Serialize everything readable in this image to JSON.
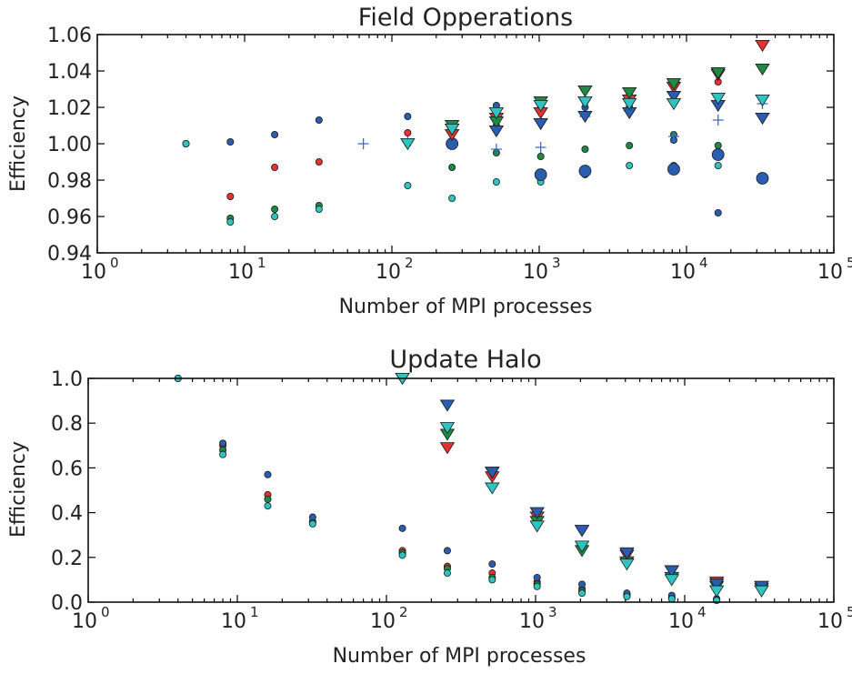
{
  "colors": {
    "red": "#e8312e",
    "green": "#1e8a44",
    "blue": "#2a5db0",
    "cyan": "#2ec4c0",
    "plus": "#3a6cc8"
  },
  "chart_data": [
    {
      "type": "scatter",
      "title": "Field Opperations",
      "xlabel": "Number of MPI processes",
      "ylabel": "Efficiency",
      "xscale": "log",
      "xlim": [
        1,
        100000
      ],
      "ylim": [
        0.94,
        1.06
      ],
      "xticks": [
        {
          "base": "10",
          "exp": "0",
          "value": 1
        },
        {
          "base": "10",
          "exp": "1",
          "value": 10
        },
        {
          "base": "10",
          "exp": "2",
          "value": 100
        },
        {
          "base": "10",
          "exp": "3",
          "value": 1000
        },
        {
          "base": "10",
          "exp": "4",
          "value": 10000
        },
        {
          "base": "10",
          "exp": "5",
          "value": 100000
        }
      ],
      "yticks": [
        {
          "label": "0.94",
          "value": 0.94
        },
        {
          "label": "0.96",
          "value": 0.96
        },
        {
          "label": "0.98",
          "value": 0.98
        },
        {
          "label": "1.00",
          "value": 1.0
        },
        {
          "label": "1.02",
          "value": 1.02
        },
        {
          "label": "1.04",
          "value": 1.04
        },
        {
          "label": "1.06",
          "value": 1.06
        }
      ],
      "grid": false,
      "series": [
        {
          "marker": "circle-small",
          "color": "red",
          "x": [
            8,
            16,
            32,
            128,
            256,
            512,
            1024,
            2048,
            4096,
            8192,
            16384
          ],
          "y": [
            0.971,
            0.987,
            0.99,
            1.006,
            1.0,
            1.01,
            1.018,
            1.024,
            1.028,
            1.032,
            1.034
          ]
        },
        {
          "marker": "circle-small",
          "color": "green",
          "x": [
            8,
            16,
            32,
            128,
            256,
            512,
            1024,
            2048,
            4096,
            8192,
            16384
          ],
          "y": [
            0.959,
            0.964,
            0.966,
            1.0,
            0.987,
            0.995,
            0.993,
            0.997,
            0.999,
            1.005,
            0.999
          ]
        },
        {
          "marker": "circle-small",
          "color": "blue",
          "x": [
            4,
            8,
            16,
            32,
            128,
            256,
            512,
            1024,
            2048,
            4096,
            8192,
            16384
          ],
          "y": [
            1.0,
            1.001,
            1.005,
            1.013,
            1.015,
            1.01,
            1.021,
            1.02,
            1.02,
            1.02,
            1.002,
            0.962
          ]
        },
        {
          "marker": "circle-small",
          "color": "cyan",
          "x": [
            4,
            8,
            16,
            32,
            128,
            256,
            512,
            1024,
            2048,
            4096,
            8192,
            16384
          ],
          "y": [
            1.0,
            0.957,
            0.96,
            0.964,
            0.977,
            0.97,
            0.979,
            0.979,
            0.983,
            0.988,
            0.988,
            0.988
          ]
        },
        {
          "marker": "circle-large",
          "color": "blue",
          "x": [
            256,
            1024,
            2048,
            8192,
            16384,
            32768
          ],
          "y": [
            1.0,
            0.983,
            0.985,
            0.986,
            0.994,
            0.981
          ]
        },
        {
          "marker": "plus",
          "color": "plus",
          "x": [
            64,
            128,
            512,
            1024,
            2048,
            4096,
            8192,
            16384,
            32768
          ],
          "y": [
            1.0,
            1.001,
            0.997,
            0.998,
            1.015,
            1.018,
            1.004,
            1.013,
            1.022
          ]
        },
        {
          "marker": "triangle-down",
          "color": "red",
          "x": [
            256,
            512,
            1024,
            2048,
            4096,
            8192,
            16384,
            32768
          ],
          "y": [
            1.005,
            1.014,
            1.017,
            1.023,
            1.024,
            1.031,
            1.038,
            1.054
          ]
        },
        {
          "marker": "triangle-down",
          "color": "green",
          "x": [
            256,
            512,
            1024,
            2048,
            4096,
            8192,
            16384,
            32768
          ],
          "y": [
            1.01,
            1.012,
            1.023,
            1.029,
            1.028,
            1.033,
            1.039,
            1.041
          ]
        },
        {
          "marker": "triangle-down",
          "color": "blue",
          "x": [
            256,
            512,
            1024,
            2048,
            4096,
            8192,
            16384,
            32768
          ],
          "y": [
            1.008,
            1.007,
            1.011,
            1.015,
            1.017,
            1.026,
            1.021,
            1.014
          ]
        },
        {
          "marker": "triangle-down",
          "color": "cyan",
          "x": [
            128,
            256,
            512,
            1024,
            2048,
            4096,
            8192,
            16384,
            32768
          ],
          "y": [
            1.0,
            1.008,
            1.017,
            1.021,
            1.023,
            1.022,
            1.022,
            1.025,
            1.024
          ]
        }
      ]
    },
    {
      "type": "scatter",
      "title": "Update Halo",
      "xlabel": "Number of MPI processes",
      "ylabel": "Efficiency",
      "xscale": "log",
      "xlim": [
        1,
        100000
      ],
      "ylim": [
        0.0,
        1.0
      ],
      "xticks": [
        {
          "base": "10",
          "exp": "0",
          "value": 1
        },
        {
          "base": "10",
          "exp": "1",
          "value": 10
        },
        {
          "base": "10",
          "exp": "2",
          "value": 100
        },
        {
          "base": "10",
          "exp": "3",
          "value": 1000
        },
        {
          "base": "10",
          "exp": "4",
          "value": 10000
        },
        {
          "base": "10",
          "exp": "5",
          "value": 100000
        }
      ],
      "yticks": [
        {
          "label": "0.0",
          "value": 0.0
        },
        {
          "label": "0.2",
          "value": 0.2
        },
        {
          "label": "0.4",
          "value": 0.4
        },
        {
          "label": "0.6",
          "value": 0.6
        },
        {
          "label": "0.8",
          "value": 0.8
        },
        {
          "label": "1.0",
          "value": 1.0
        }
      ],
      "grid": false,
      "series": [
        {
          "marker": "circle-small",
          "color": "red",
          "x": [
            8,
            16,
            32,
            128,
            256,
            512,
            1024,
            2048,
            4096,
            8192,
            16384
          ],
          "y": [
            0.7,
            0.48,
            0.36,
            0.23,
            0.16,
            0.13,
            0.09,
            0.06,
            0.035,
            0.02,
            0.01
          ]
        },
        {
          "marker": "circle-small",
          "color": "green",
          "x": [
            8,
            16,
            32,
            128,
            256,
            512,
            1024,
            2048,
            4096,
            8192,
            16384
          ],
          "y": [
            0.68,
            0.46,
            0.36,
            0.22,
            0.15,
            0.11,
            0.08,
            0.05,
            0.03,
            0.02,
            0.01
          ]
        },
        {
          "marker": "circle-small",
          "color": "blue",
          "x": [
            4,
            8,
            16,
            32,
            128,
            256,
            512,
            1024,
            2048,
            4096,
            8192,
            16384
          ],
          "y": [
            1.0,
            0.71,
            0.57,
            0.38,
            0.33,
            0.23,
            0.17,
            0.11,
            0.08,
            0.04,
            0.03,
            0.015
          ]
        },
        {
          "marker": "circle-small",
          "color": "cyan",
          "x": [
            4,
            8,
            16,
            32,
            128,
            256,
            512,
            1024,
            2048,
            4096,
            8192,
            16384
          ],
          "y": [
            1.0,
            0.66,
            0.43,
            0.35,
            0.21,
            0.13,
            0.1,
            0.07,
            0.04,
            0.025,
            0.015,
            0.008
          ]
        },
        {
          "marker": "triangle-down",
          "color": "red",
          "x": [
            256,
            512,
            1024,
            2048,
            4096,
            8192,
            16384,
            32768
          ],
          "y": [
            0.69,
            0.56,
            0.38,
            0.32,
            0.21,
            0.14,
            0.09,
            0.07
          ]
        },
        {
          "marker": "triangle-down",
          "color": "green",
          "x": [
            256,
            512,
            1024,
            2048,
            4096,
            8192,
            16384,
            32768
          ],
          "y": [
            0.75,
            0.58,
            0.36,
            0.23,
            0.18,
            0.11,
            0.07,
            0.06
          ]
        },
        {
          "marker": "triangle-down",
          "color": "blue",
          "x": [
            128,
            256,
            512,
            1024,
            2048,
            4096,
            8192,
            16384,
            32768
          ],
          "y": [
            1.0,
            0.88,
            0.58,
            0.4,
            0.32,
            0.22,
            0.14,
            0.08,
            0.07
          ]
        },
        {
          "marker": "triangle-down",
          "color": "cyan",
          "x": [
            128,
            256,
            512,
            1024,
            2048,
            4096,
            8192,
            16384,
            32768
          ],
          "y": [
            1.0,
            0.78,
            0.51,
            0.34,
            0.25,
            0.17,
            0.1,
            0.05,
            0.05
          ]
        }
      ]
    }
  ]
}
